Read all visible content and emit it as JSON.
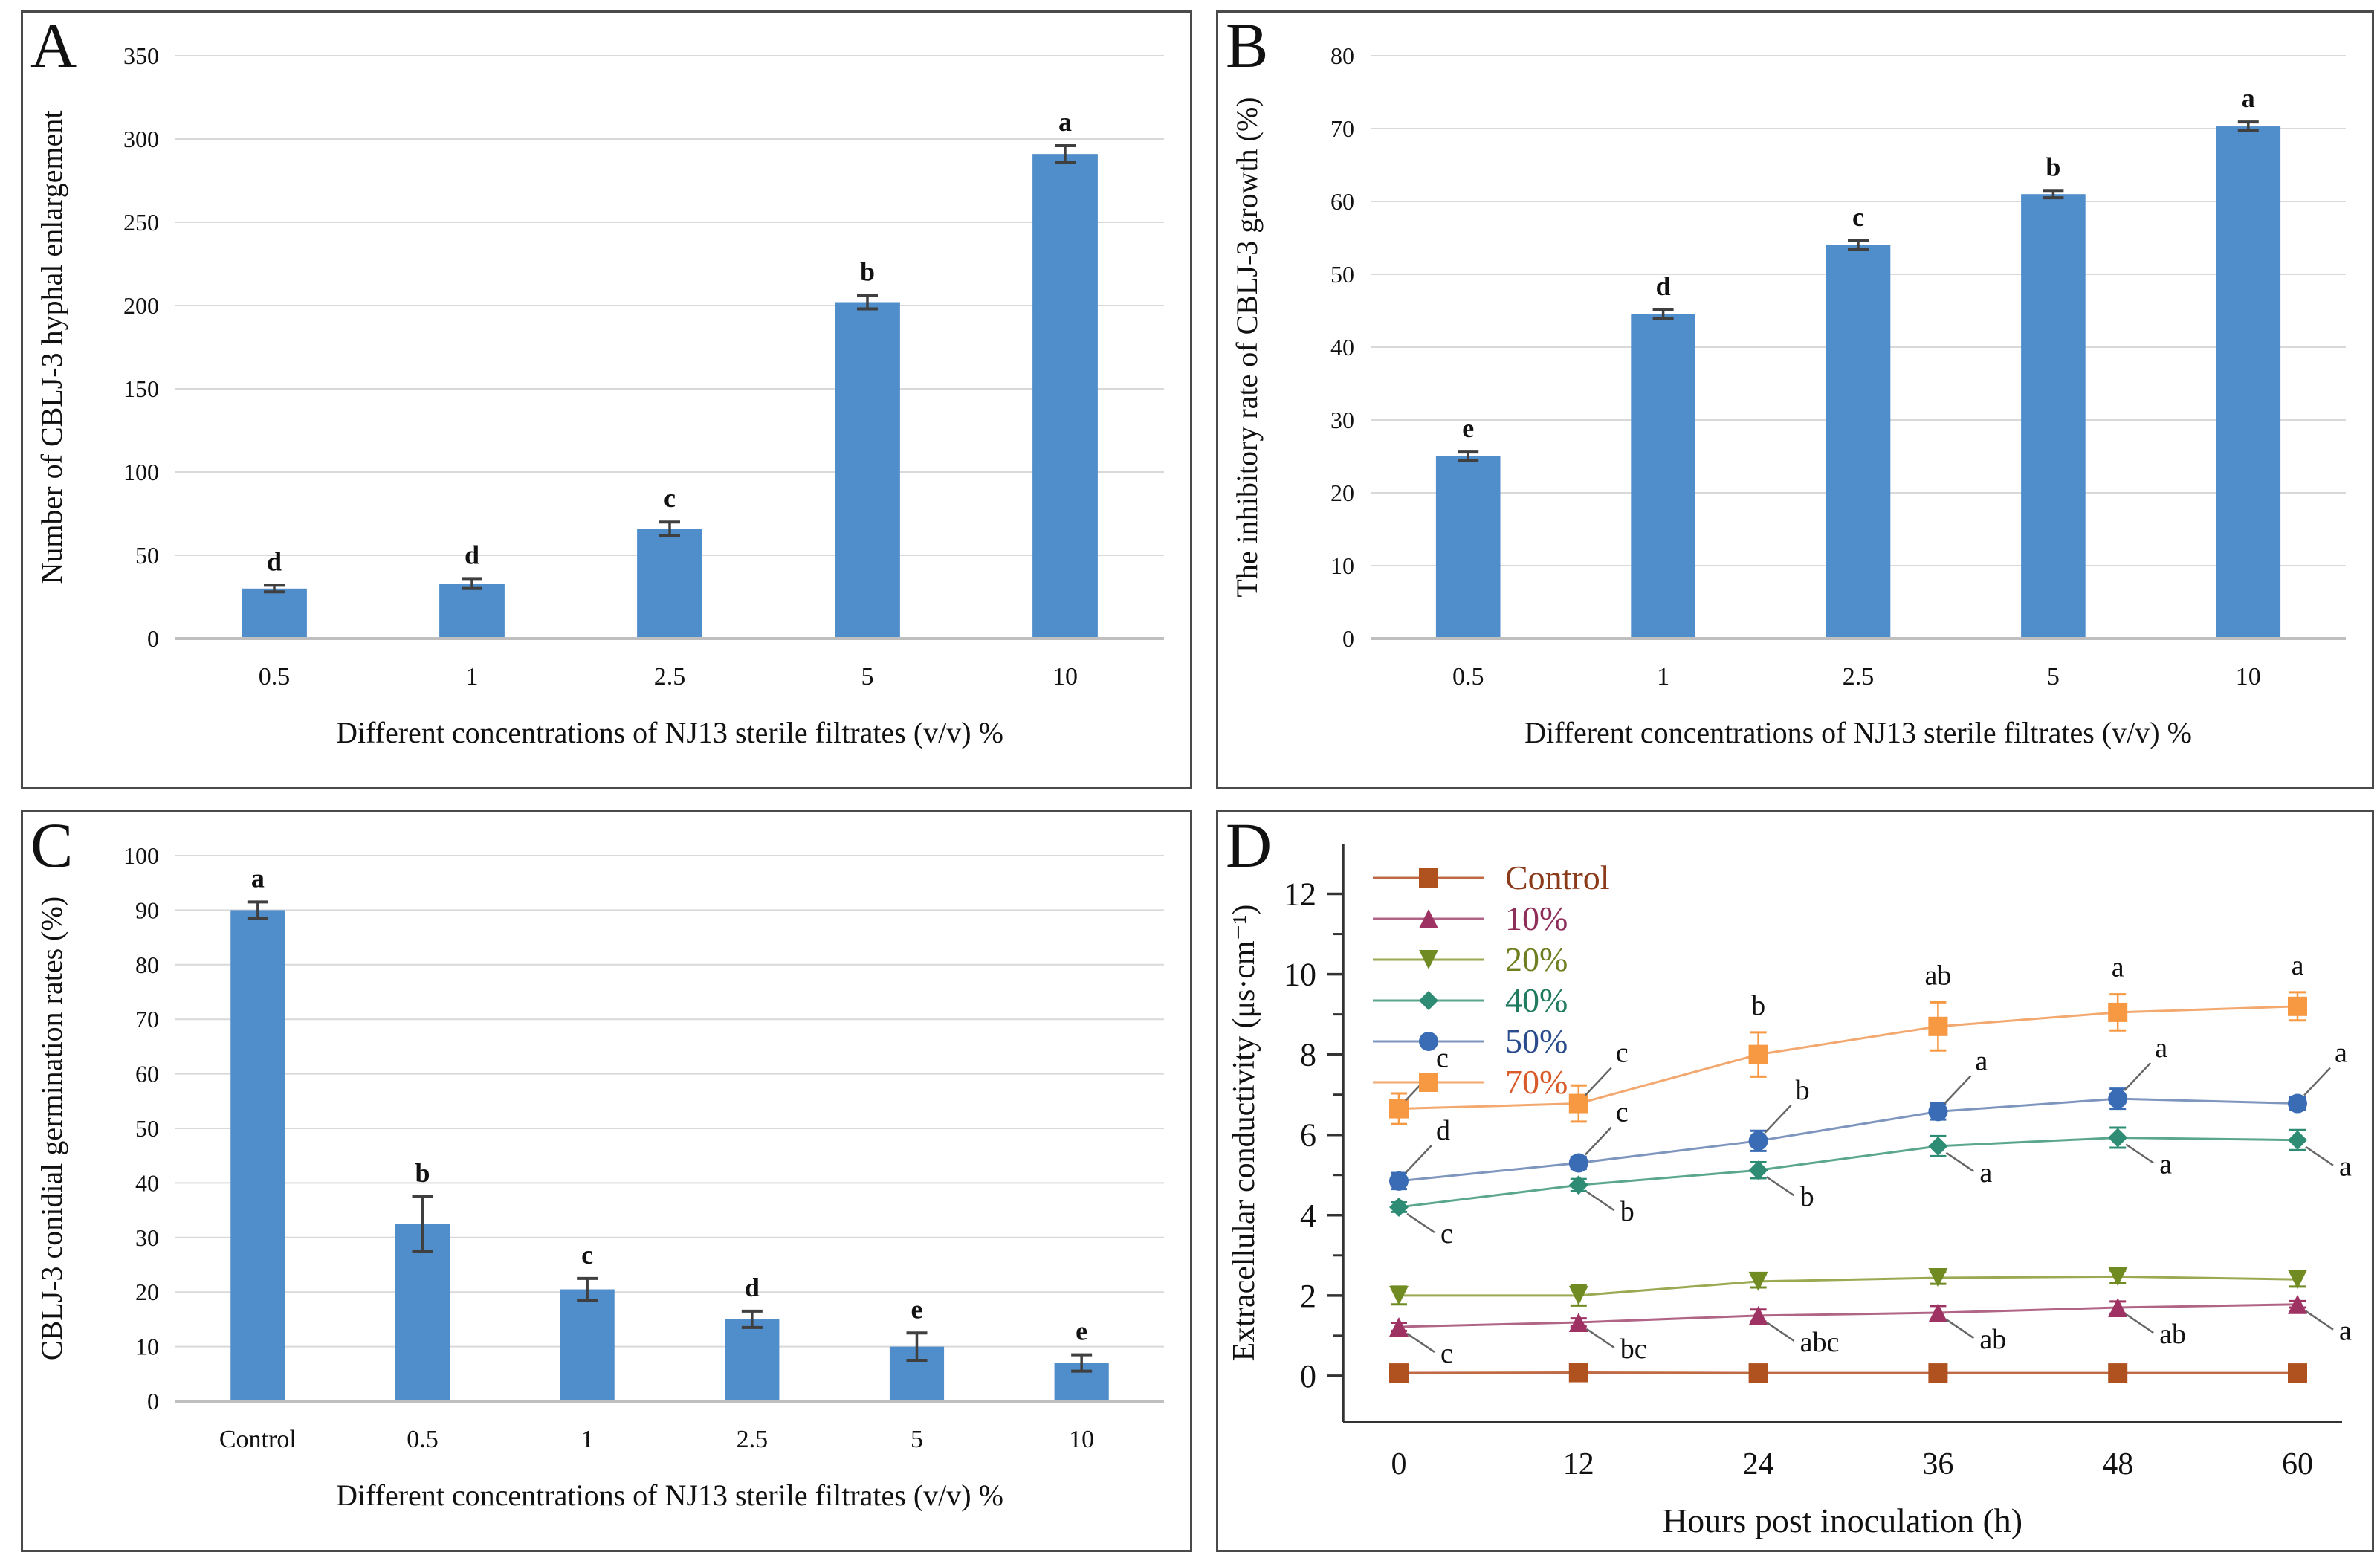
{
  "figure": {
    "description": "Four-panel scientific figure on NJ13 sterile filtrate effects on CBLJ-3",
    "bar_color": "#4F8DCB",
    "grid_color": "#D9D9D9",
    "baseline_color": "#BFBFBF",
    "error_bar_color": "#3F3F3F",
    "axis_color": "#333333",
    "letter_color": "#111111"
  },
  "chart_data": [
    {
      "panel": "A",
      "type": "bar",
      "categories": [
        "0.5",
        "1",
        "2.5",
        "5",
        "10"
      ],
      "values": [
        30,
        33,
        66,
        202,
        291
      ],
      "errors": [
        2,
        3,
        4,
        4,
        5
      ],
      "sig_letters": [
        "d",
        "d",
        "c",
        "b",
        "a"
      ],
      "xlabel": "Different concentrations of NJ13 sterile filtrates (v/v) %",
      "ylabel": "Number of CBLJ-3 hyphal enlargement",
      "ylim": [
        0,
        350
      ],
      "ytick_step": 50,
      "yticks": [
        "0",
        "50",
        "100",
        "150",
        "200",
        "250",
        "300",
        "350"
      ],
      "grid": true,
      "legend": "none"
    },
    {
      "panel": "B",
      "type": "bar",
      "categories": [
        "0.5",
        "1",
        "2.5",
        "5",
        "10"
      ],
      "values": [
        25,
        44.5,
        54,
        61,
        70.3
      ],
      "errors": [
        0.6,
        0.6,
        0.6,
        0.5,
        0.6
      ],
      "sig_letters": [
        "e",
        "d",
        "c",
        "b",
        "a"
      ],
      "xlabel": "Different concentrations of NJ13 sterile filtrates (v/v) %",
      "ylabel": "The inhibitory rate of CBLJ-3 growth (%)",
      "ylim": [
        0,
        80
      ],
      "ytick_step": 10,
      "yticks": [
        "0",
        "10",
        "20",
        "30",
        "40",
        "50",
        "60",
        "70",
        "80"
      ],
      "grid": true,
      "legend": "none"
    },
    {
      "panel": "C",
      "type": "bar",
      "categories": [
        "Control",
        "0.5",
        "1",
        "2.5",
        "5",
        "10"
      ],
      "values": [
        90,
        32.5,
        20.5,
        15,
        10,
        7
      ],
      "errors": [
        1.5,
        5,
        2,
        1.5,
        2.5,
        1.5
      ],
      "sig_letters": [
        "a",
        "b",
        "c",
        "d",
        "e",
        "e"
      ],
      "xlabel": "Different concentrations of NJ13 sterile filtrates (v/v) %",
      "ylabel": "CBLJ-3 conidial germination rates (%)",
      "ylim": [
        0,
        100
      ],
      "ytick_step": 10,
      "yticks": [
        "0",
        "10",
        "20",
        "30",
        "40",
        "50",
        "60",
        "70",
        "80",
        "90",
        "100"
      ],
      "grid": true,
      "legend": "none"
    },
    {
      "panel": "D",
      "type": "line",
      "x": [
        0,
        12,
        24,
        36,
        48,
        60
      ],
      "xtick_labels": [
        "0",
        "12",
        "24",
        "36",
        "48",
        "60"
      ],
      "xlabel": "Hours post inoculation (h)",
      "ylabel": "Extracellular conductivity (μs·cm⁻¹)",
      "ylim": [
        0,
        12
      ],
      "yticks": [
        "0",
        "2",
        "4",
        "6",
        "8",
        "10",
        "12"
      ],
      "minor_yticks": [
        1,
        3,
        5,
        7,
        9,
        11
      ],
      "grid": false,
      "legend_position": "top-left",
      "series": [
        {
          "name": "Control",
          "marker": "square",
          "color": "#B0521F",
          "line_color": "#C06A45",
          "text_color": "#8B3A1A",
          "values": [
            0.07,
            0.08,
            0.07,
            0.07,
            0.07,
            0.07
          ],
          "errors": [
            0,
            0,
            0,
            0,
            0,
            0
          ],
          "letters": [
            "",
            "",
            "",
            "",
            "",
            ""
          ],
          "letter_placement": "none"
        },
        {
          "name": "10%",
          "marker": "triangle-up",
          "color": "#9E3363",
          "line_color": "#B06586",
          "text_color": "#8E2F5A",
          "values": [
            1.22,
            1.33,
            1.5,
            1.57,
            1.7,
            1.78
          ],
          "errors": [
            0.1,
            0.1,
            0.15,
            0.17,
            0.15,
            0.08
          ],
          "letters": [
            "c",
            "bc",
            "abc",
            "ab",
            "ab",
            "a"
          ],
          "letter_placement": "down-right"
        },
        {
          "name": "20%",
          "marker": "triangle-down",
          "color": "#6F8B22",
          "line_color": "#9AAA52",
          "text_color": "#6E7F22",
          "values": [
            2.0,
            2.0,
            2.35,
            2.44,
            2.47,
            2.4
          ],
          "errors": [
            0.22,
            0.25,
            0.15,
            0.15,
            0.15,
            0.18
          ],
          "letters": [
            "",
            "",
            "",
            "",
            "",
            ""
          ],
          "letter_placement": "none"
        },
        {
          "name": "40%",
          "marker": "diamond",
          "color": "#2F8C74",
          "line_color": "#5AA68F",
          "text_color": "#1F7A5F",
          "values": [
            4.2,
            4.75,
            5.12,
            5.72,
            5.93,
            5.87
          ],
          "errors": [
            0.12,
            0.15,
            0.2,
            0.25,
            0.25,
            0.25
          ],
          "letters": [
            "c",
            "b",
            "b",
            "a",
            "a",
            "a"
          ],
          "letter_placement": "down-right"
        },
        {
          "name": "50%",
          "marker": "circle",
          "color": "#3A6BB5",
          "line_color": "#7E96BE",
          "text_color": "#2B4C8C",
          "values": [
            4.85,
            5.3,
            5.85,
            6.58,
            6.9,
            6.78
          ],
          "errors": [
            0.2,
            0.15,
            0.25,
            0.2,
            0.25,
            0.15
          ],
          "letters": [
            "d",
            "c",
            "b",
            "a",
            "a",
            "a"
          ],
          "letter_placement": "up-right"
        },
        {
          "name": "70%",
          "marker": "square",
          "color": "#F79843",
          "line_color": "#F2A86E",
          "text_color": "#D95B2B",
          "values": [
            6.65,
            6.78,
            8.0,
            8.7,
            9.05,
            9.2
          ],
          "errors": [
            0.38,
            0.45,
            0.55,
            0.6,
            0.45,
            0.35
          ],
          "letters": [
            "c",
            "c",
            "b",
            "ab",
            "a",
            "a"
          ],
          "letter_placement": [
            "up-right",
            "up-right",
            "above",
            "above",
            "above",
            "above"
          ]
        }
      ]
    }
  ]
}
